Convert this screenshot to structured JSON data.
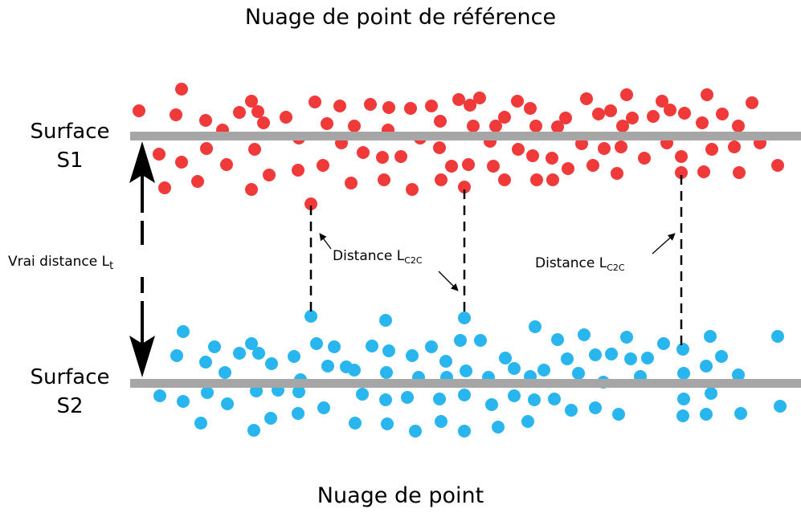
{
  "title_top": "Nuage de point de référence",
  "title_bottom": "Nuage de point",
  "surface_s1": {
    "line1": "Surface",
    "line2": "S1"
  },
  "surface_s2": {
    "line1": "Surface",
    "line2": "S2"
  },
  "true_distance": {
    "text": "Vrai distance L",
    "sub": "t"
  },
  "c2c_label": {
    "text": "Distance L",
    "sub": "C2C"
  },
  "colors": {
    "reference_points": "#f03a3a",
    "compared_points": "#29b6ee",
    "surface_line": "#a6a6a6",
    "arrows": "#000000"
  }
}
